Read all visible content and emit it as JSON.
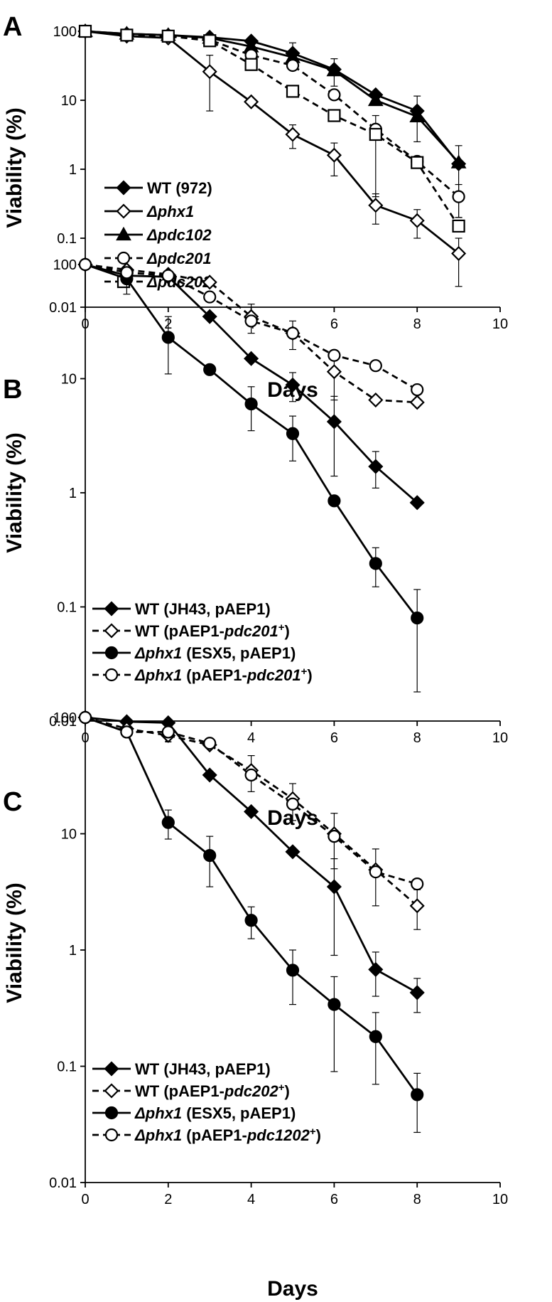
{
  "chart_data": [
    {
      "panel": "A",
      "type": "line",
      "xlabel": "Days",
      "ylabel": "Viability (%)",
      "xlim": [
        0,
        10
      ],
      "ylim": [
        0.01,
        100
      ],
      "yscale": "log",
      "x_ticks": [
        "0",
        "2",
        "4",
        "6",
        "8",
        "10"
      ],
      "y_ticks": [
        "0.01",
        "0.1",
        "1",
        "10",
        "100"
      ],
      "legend_position": "lower-left",
      "series": [
        {
          "name": "WT (972)",
          "name_parts": [
            {
              "text": "WT (972)",
              "italic": false
            }
          ],
          "marker": "diamond",
          "fill": "#000000",
          "dash": false,
          "x": [
            0,
            1,
            2,
            3,
            4,
            5,
            6,
            7,
            8,
            9
          ],
          "y": [
            100,
            92,
            88,
            82,
            72,
            48,
            28,
            12,
            7,
            1.2
          ],
          "err": [
            0,
            0,
            0,
            0,
            0,
            20,
            12,
            0,
            4.5,
            1.0
          ]
        },
        {
          "name": "Δphx1",
          "name_parts": [
            {
              "text": "Δphx1",
              "italic": true
            }
          ],
          "marker": "diamond",
          "fill": "#ffffff",
          "dash": false,
          "x": [
            0,
            1,
            2,
            3,
            4,
            5,
            6,
            7,
            8,
            9
          ],
          "y": [
            100,
            85,
            80,
            26,
            9.5,
            3.2,
            1.6,
            0.3,
            0.18,
            0.06
          ],
          "err": [
            0,
            0,
            0,
            19,
            0,
            1.2,
            0.8,
            0.14,
            0.08,
            0.04
          ]
        },
        {
          "name": "Δpdc102",
          "name_parts": [
            {
              "text": "Δpdc102",
              "italic": true
            }
          ],
          "marker": "triangle",
          "fill": "#000000",
          "dash": false,
          "x": [
            0,
            1,
            2,
            3,
            4,
            5,
            6,
            7,
            8,
            9
          ],
          "y": [
            100,
            92,
            88,
            80,
            60,
            42,
            27,
            10,
            5.8,
            1.25
          ],
          "err": [
            0,
            0,
            0,
            0,
            0,
            0,
            0,
            0,
            0,
            0
          ]
        },
        {
          "name": "Δpdc201",
          "name_parts": [
            {
              "text": "Δpdc201",
              "italic": true
            }
          ],
          "marker": "circle",
          "fill": "#ffffff",
          "dash": true,
          "x": [
            0,
            1,
            2,
            3,
            4,
            5,
            6,
            7,
            8,
            9
          ],
          "y": [
            100,
            88,
            85,
            75,
            45,
            32,
            12,
            3.8,
            1.3,
            0.4
          ],
          "err": [
            0,
            0,
            0,
            0,
            0,
            0,
            0,
            0,
            0,
            0.2
          ]
        },
        {
          "name": "Δpdc202",
          "name_parts": [
            {
              "text": "Δpdc202",
              "italic": true
            }
          ],
          "marker": "square",
          "fill": "#ffffff",
          "dash": true,
          "x": [
            0,
            1,
            2,
            3,
            4,
            5,
            6,
            7,
            8,
            9
          ],
          "y": [
            100,
            88,
            85,
            73,
            33,
            13.5,
            6,
            3.2,
            1.25,
            0.15
          ],
          "err": [
            0,
            0,
            0,
            0,
            0,
            0,
            0,
            2.8,
            0,
            0
          ]
        }
      ]
    },
    {
      "panel": "B",
      "type": "line",
      "xlabel": "Days",
      "ylabel": "Viability (%)",
      "xlim": [
        0,
        10
      ],
      "ylim": [
        0.01,
        100
      ],
      "yscale": "log",
      "x_ticks": [
        "0",
        "2",
        "4",
        "6",
        "8",
        "10"
      ],
      "y_ticks": [
        "0.01",
        "0.1",
        "1",
        "10",
        "100"
      ],
      "legend_position": "lower-left",
      "series": [
        {
          "name": "WT (JH43, pAEP1)",
          "name_parts": [
            {
              "text": "WT (JH43, pAEP1)",
              "italic": false
            }
          ],
          "marker": "diamond",
          "fill": "#000000",
          "dash": false,
          "x": [
            0,
            1,
            2,
            3,
            4,
            5,
            6,
            7,
            8
          ],
          "y": [
            100,
            80,
            78,
            35,
            15,
            8.8,
            4.2,
            1.7,
            0.82
          ],
          "err": [
            0,
            0,
            0,
            0,
            0,
            2.5,
            2.8,
            0.6,
            0
          ]
        },
        {
          "name": "WT (pAEP1-pdc201+)",
          "name_parts": [
            {
              "text": "WT (pAEP1-",
              "italic": false
            },
            {
              "text": "pdc201",
              "italic": true
            },
            {
              "text": "+",
              "italic": false,
              "sup": true
            },
            {
              "text": ")",
              "italic": false
            }
          ],
          "marker": "diamond",
          "fill": "#ffffff",
          "dash": true,
          "x": [
            0,
            1,
            2,
            3,
            4,
            5,
            6,
            7,
            8
          ],
          "y": [
            100,
            90,
            82,
            70,
            35,
            25,
            11.5,
            6.5,
            6.2
          ],
          "err": [
            0,
            0,
            0,
            0,
            10,
            7,
            5,
            0,
            0
          ]
        },
        {
          "name": "Δphx1 (ESX5, pAEP1)",
          "name_parts": [
            {
              "text": "Δphx1",
              "italic": true
            },
            {
              "text": " (ESX5, pAEP1)",
              "italic": false
            }
          ],
          "marker": "circle",
          "fill": "#000000",
          "dash": false,
          "x": [
            0,
            1,
            2,
            3,
            4,
            5,
            6,
            7,
            8
          ],
          "y": [
            100,
            75,
            23,
            12,
            6,
            3.3,
            0.85,
            0.24,
            0.08
          ],
          "err": [
            0,
            20,
            12,
            0,
            2.5,
            1.4,
            0,
            0.09,
            0.062
          ]
        },
        {
          "name": "Δphx1 (pAEP1-pdc201+)",
          "name_parts": [
            {
              "text": "Δphx1",
              "italic": true
            },
            {
              "text": " (pAEP1-",
              "italic": false
            },
            {
              "text": "pdc201",
              "italic": true
            },
            {
              "text": "+",
              "italic": false,
              "sup": true
            },
            {
              "text": ")",
              "italic": false
            }
          ],
          "marker": "circle",
          "fill": "#ffffff",
          "dash": true,
          "x": [
            0,
            1,
            2,
            3,
            4,
            5,
            6,
            7,
            8
          ],
          "y": [
            100,
            85,
            80,
            52,
            32,
            25,
            16,
            13,
            8
          ],
          "err": [
            0,
            0,
            0,
            0,
            0,
            0,
            0,
            0,
            0
          ]
        }
      ]
    },
    {
      "panel": "C",
      "type": "line",
      "xlabel": "Days",
      "ylabel": "Viability (%)",
      "xlim": [
        0,
        10
      ],
      "ylim": [
        0.01,
        100
      ],
      "yscale": "log",
      "x_ticks": [
        "0",
        "2",
        "4",
        "6",
        "8",
        "10"
      ],
      "y_ticks": [
        "0.01",
        "0.1",
        "1",
        "10",
        "100"
      ],
      "legend_position": "lower-left",
      "series": [
        {
          "name": "WT (JH43, pAEP1)",
          "name_parts": [
            {
              "text": "WT (JH43, pAEP1)",
              "italic": false
            }
          ],
          "marker": "diamond",
          "fill": "#000000",
          "dash": false,
          "x": [
            0,
            1,
            2,
            3,
            4,
            5,
            6,
            7,
            8
          ],
          "y": [
            100,
            92,
            90,
            32,
            15.5,
            7,
            3.5,
            0.68,
            0.43
          ],
          "err": [
            0,
            0,
            0,
            0,
            0,
            0,
            2.6,
            0.28,
            0.14
          ]
        },
        {
          "name": "WT (pAEP1-pdc202+)",
          "name_parts": [
            {
              "text": "WT (pAEP1-",
              "italic": false
            },
            {
              "text": "pdc202",
              "italic": true
            },
            {
              "text": "+",
              "italic": false,
              "sup": true
            },
            {
              "text": ")",
              "italic": false
            }
          ],
          "marker": "diamond",
          "fill": "#ffffff",
          "dash": true,
          "x": [
            0,
            1,
            2,
            3,
            4,
            5,
            6,
            7,
            8
          ],
          "y": [
            100,
            80,
            70,
            58,
            35,
            20,
            10,
            4.9,
            2.4
          ],
          "err": [
            0,
            0,
            0,
            0,
            12,
            7,
            5,
            2.5,
            0.9
          ]
        },
        {
          "name": "Δphx1 (ESX5, pAEP1)",
          "name_parts": [
            {
              "text": "Δphx1",
              "italic": true
            },
            {
              "text": " (ESX5, pAEP1)",
              "italic": false
            }
          ],
          "marker": "circle",
          "fill": "#000000",
          "dash": false,
          "x": [
            0,
            1,
            2,
            3,
            4,
            5,
            6,
            7,
            8
          ],
          "y": [
            100,
            75,
            12.5,
            6.5,
            1.8,
            0.67,
            0.34,
            0.18,
            0.057
          ],
          "err": [
            0,
            0,
            3.5,
            3,
            0.55,
            0.33,
            0.25,
            0.11,
            0.03
          ]
        },
        {
          "name": "Δphx1 (pAEP1-pdc1202+)",
          "name_parts": [
            {
              "text": "Δphx1",
              "italic": true
            },
            {
              "text": " (pAEP1-",
              "italic": false
            },
            {
              "text": "pdc1202",
              "italic": true
            },
            {
              "text": "+",
              "italic": false,
              "sup": true
            },
            {
              "text": ")",
              "italic": false
            }
          ],
          "marker": "circle",
          "fill": "#ffffff",
          "dash": true,
          "x": [
            0,
            1,
            2,
            3,
            4,
            5,
            6,
            7,
            8
          ],
          "y": [
            100,
            75,
            75,
            60,
            32,
            18,
            9.5,
            4.7,
            3.7
          ],
          "err": [
            0,
            0,
            0,
            0,
            0,
            0,
            0,
            0,
            0
          ]
        }
      ]
    }
  ]
}
